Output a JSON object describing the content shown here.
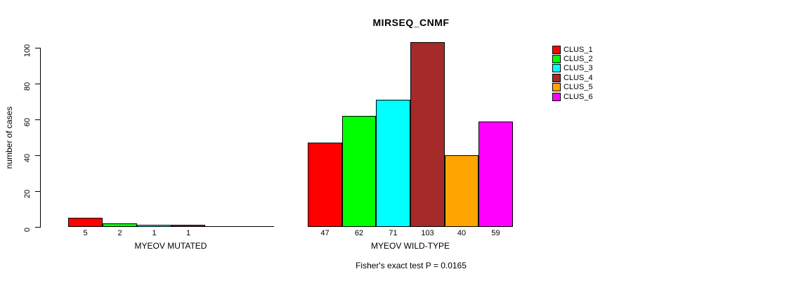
{
  "chart_data": {
    "type": "bar",
    "title": "MIRSEQ_CNMF",
    "ylabel": "number of cases",
    "ylim": [
      0,
      100
    ],
    "yticks": [
      0,
      20,
      40,
      60,
      80,
      100
    ],
    "grid": false,
    "legend_position": "right",
    "series_names": [
      "CLUS_1",
      "CLUS_2",
      "CLUS_3",
      "CLUS_4",
      "CLUS_5",
      "CLUS_6"
    ],
    "colors": [
      "#FF0000",
      "#00FF00",
      "#00FFFF",
      "#A52A2A",
      "#FFA500",
      "#FF00FF"
    ],
    "groups": [
      {
        "name": "MYEOV MUTATED",
        "values": [
          5,
          2,
          1,
          1,
          0,
          0
        ],
        "bar_labels": [
          "5",
          "2",
          "1",
          "1",
          "",
          ""
        ]
      },
      {
        "name": "MYEOV WILD-TYPE",
        "values": [
          47,
          62,
          71,
          103,
          40,
          59
        ],
        "bar_labels": [
          "47",
          "62",
          "71",
          "103",
          "40",
          "59"
        ]
      }
    ],
    "footnote": "Fisher's exact test P = 0.0165"
  }
}
